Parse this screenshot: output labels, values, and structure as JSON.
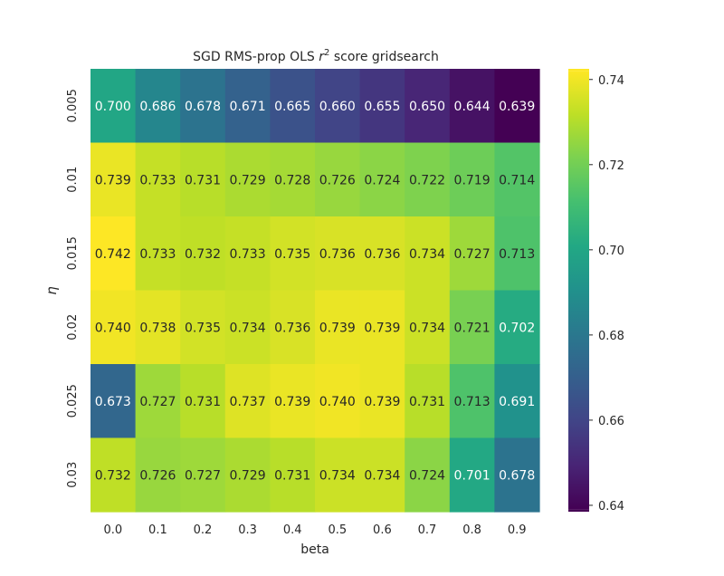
{
  "chart_data": {
    "type": "heatmap",
    "title_prefix": "SGD RMS-prop OLS ",
    "title_var": "r",
    "title_sup": "2",
    "title_suffix": " score gridsearch",
    "xlabel": "beta",
    "ylabel": "η",
    "x_categories": [
      "0.0",
      "0.1",
      "0.2",
      "0.3",
      "0.4",
      "0.5",
      "0.6",
      "0.7",
      "0.8",
      "0.9"
    ],
    "y_categories": [
      "0.005",
      "0.01",
      "0.015",
      "0.02",
      "0.025",
      "0.03"
    ],
    "values": [
      [
        0.7,
        0.686,
        0.678,
        0.671,
        0.665,
        0.66,
        0.655,
        0.65,
        0.644,
        0.639
      ],
      [
        0.739,
        0.733,
        0.731,
        0.729,
        0.728,
        0.726,
        0.724,
        0.722,
        0.719,
        0.714
      ],
      [
        0.742,
        0.733,
        0.732,
        0.733,
        0.735,
        0.736,
        0.736,
        0.734,
        0.727,
        0.713
      ],
      [
        0.74,
        0.738,
        0.735,
        0.734,
        0.736,
        0.739,
        0.739,
        0.734,
        0.721,
        0.702
      ],
      [
        0.673,
        0.727,
        0.731,
        0.737,
        0.739,
        0.74,
        0.739,
        0.731,
        0.713,
        0.691
      ],
      [
        0.732,
        0.726,
        0.727,
        0.729,
        0.731,
        0.734,
        0.734,
        0.724,
        0.701,
        0.678
      ]
    ],
    "colormap": "viridis",
    "vmin": 0.639,
    "vmax": 0.742,
    "colorbar_ticks": [
      "0.64",
      "0.66",
      "0.68",
      "0.70",
      "0.72",
      "0.74"
    ]
  }
}
